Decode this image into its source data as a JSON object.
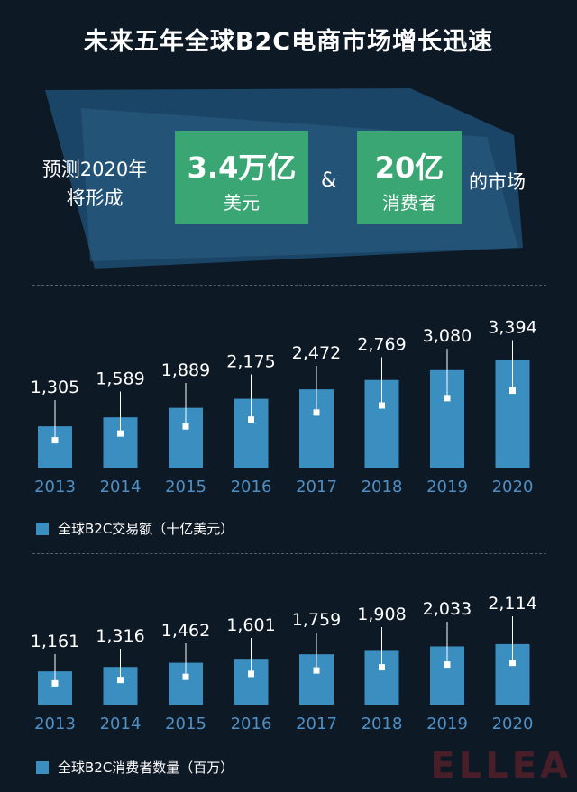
{
  "header": {
    "title": "未来五年全球B2C电商市场增长迅速",
    "lead_line1": "预测2020年",
    "lead_line2": "将形成",
    "box1_value": "3.4万亿",
    "box1_unit": "美元",
    "amp": "&",
    "box2_value": "20亿",
    "box2_unit": "消费者",
    "tail": "的市场"
  },
  "colors": {
    "background": "#0e1926",
    "bar": "#3a8fc0",
    "highlight_box": "#3aa674",
    "banner": "#1d4a6e",
    "axis_label": "#4f8fc4"
  },
  "chart_data": [
    {
      "type": "bar",
      "title": "",
      "legend": "全球B2C交易额（十亿美元）",
      "categories": [
        "2013",
        "2014",
        "2015",
        "2016",
        "2017",
        "2018",
        "2019",
        "2020"
      ],
      "values": [
        1305,
        1589,
        1889,
        2175,
        2472,
        2769,
        3080,
        3394
      ],
      "labels": [
        "1,305",
        "1,589",
        "1,889",
        "2,175",
        "2,472",
        "2,769",
        "3,080",
        "3,394"
      ],
      "ylim": [
        0,
        3700
      ],
      "grid": false
    },
    {
      "type": "bar",
      "title": "",
      "legend": "全球B2C消费者数量（百万）",
      "categories": [
        "2013",
        "2014",
        "2015",
        "2016",
        "2017",
        "2018",
        "2019",
        "2020"
      ],
      "values": [
        1161,
        1316,
        1462,
        1601,
        1759,
        1908,
        2033,
        2114
      ],
      "labels": [
        "1,161",
        "1,316",
        "1,462",
        "1,601",
        "1,759",
        "1,908",
        "2,033",
        "2,114"
      ],
      "ylim": [
        0,
        2300
      ],
      "grid": false
    }
  ],
  "watermark": "ELLEA"
}
